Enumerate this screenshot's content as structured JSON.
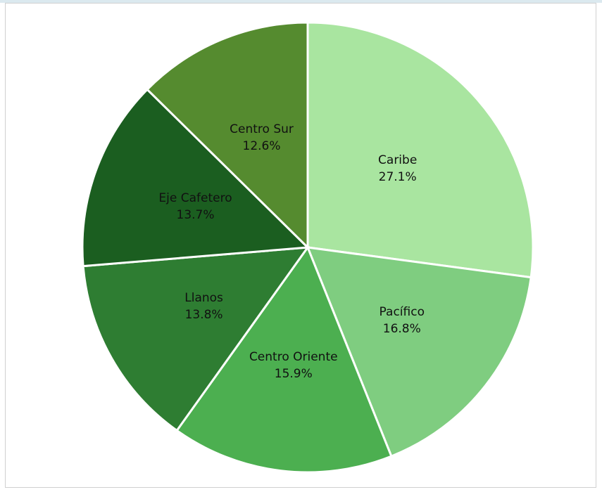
{
  "chart_data": {
    "type": "pie",
    "categories": [
      "Caribe",
      "Pacífico",
      "Centro Oriente",
      "Llanos",
      "Eje Cafetero",
      "Centro Sur"
    ],
    "values": [
      27.1,
      16.8,
      15.9,
      13.8,
      13.7,
      12.6
    ],
    "value_labels": [
      "27.1%",
      "16.8%",
      "15.9%",
      "13.8%",
      "13.7%",
      "12.6%"
    ],
    "colors": [
      "#a9e5a0",
      "#7fcd80",
      "#4caf50",
      "#2e7d32",
      "#1b5e20",
      "#558b2f"
    ]
  }
}
